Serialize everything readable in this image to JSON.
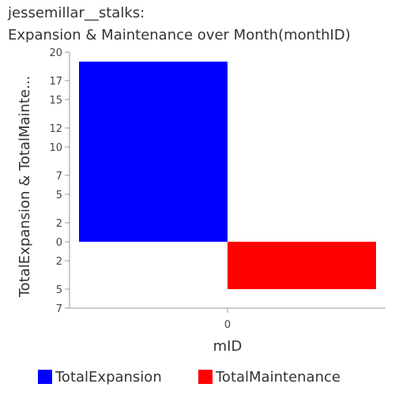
{
  "title": {
    "line1": "jessemillar__stalks:",
    "line2": "Expansion & Maintenance over Month(monthID)"
  },
  "chart_data": {
    "type": "bar",
    "title": "jessemillar__stalks: Expansion & Maintenance over Month(monthID)",
    "xlabel": "mID",
    "ylabel": "TotalExpansion & TotalMainte...",
    "categories": [
      "0"
    ],
    "series": [
      {
        "name": "TotalExpansion",
        "color": "#0000ff",
        "values": [
          19
        ]
      },
      {
        "name": "TotalMaintenance",
        "color": "#ff0000",
        "values": [
          -5
        ]
      }
    ],
    "ylim": [
      -7,
      20
    ],
    "yticks": [
      20,
      17,
      15,
      12,
      10,
      7,
      5,
      2,
      0,
      -2,
      -5,
      -7
    ],
    "ytick_labels": [
      "20",
      "17",
      "15",
      "12",
      "10",
      "7",
      "5",
      "2",
      "0",
      "2",
      "5",
      "7"
    ],
    "grid": false,
    "legend_position": "bottom"
  }
}
